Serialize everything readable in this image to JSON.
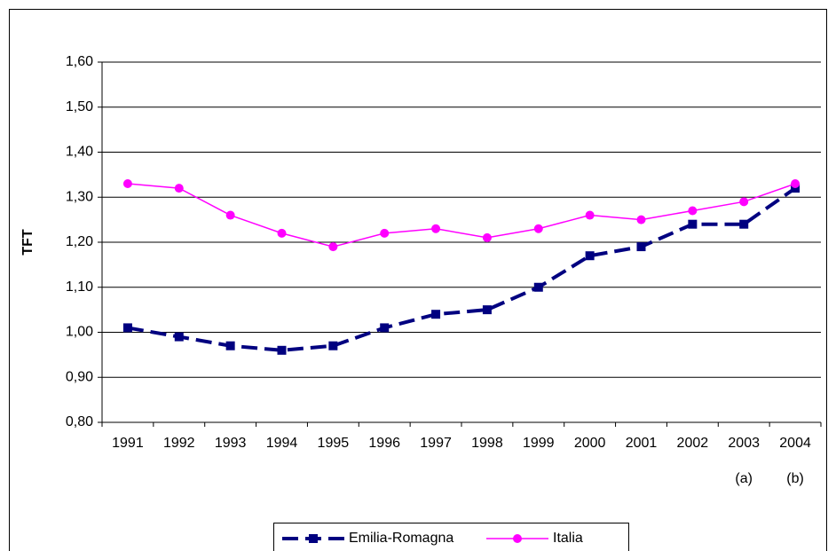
{
  "chart_data": {
    "type": "line",
    "y_label": "TFT",
    "categories": [
      "1991",
      "1992",
      "1993",
      "1994",
      "1995",
      "1996",
      "1997",
      "1998",
      "1999",
      "2000",
      "2001",
      "2002",
      "2003",
      "2004"
    ],
    "category_notes": [
      null,
      null,
      null,
      null,
      null,
      null,
      null,
      null,
      null,
      null,
      null,
      null,
      "(a)",
      "(b)"
    ],
    "series": [
      {
        "name": "Emilia-Romagna",
        "color": "#000080",
        "dashed": true,
        "marker": "square",
        "values": [
          1.01,
          0.99,
          0.97,
          0.96,
          0.97,
          1.01,
          1.04,
          1.05,
          1.1,
          1.17,
          1.19,
          1.24,
          1.24,
          1.32
        ]
      },
      {
        "name": "Italia",
        "color": "#ff00ff",
        "dashed": false,
        "marker": "circle",
        "values": [
          1.33,
          1.32,
          1.26,
          1.22,
          1.19,
          1.22,
          1.23,
          1.21,
          1.23,
          1.26,
          1.25,
          1.27,
          1.29,
          1.33
        ]
      }
    ],
    "ylim": [
      0.8,
      1.6
    ],
    "yticks": [
      {
        "value": 0.8,
        "label": "0,80"
      },
      {
        "value": 0.9,
        "label": "0,90"
      },
      {
        "value": 1.0,
        "label": "1,00"
      },
      {
        "value": 1.1,
        "label": "1,10"
      },
      {
        "value": 1.2,
        "label": "1,20"
      },
      {
        "value": 1.3,
        "label": "1,30"
      },
      {
        "value": 1.4,
        "label": "1,40"
      },
      {
        "value": 1.5,
        "label": "1,50"
      },
      {
        "value": 1.6,
        "label": "1,60"
      }
    ],
    "grid": true,
    "legend": "bottom"
  }
}
